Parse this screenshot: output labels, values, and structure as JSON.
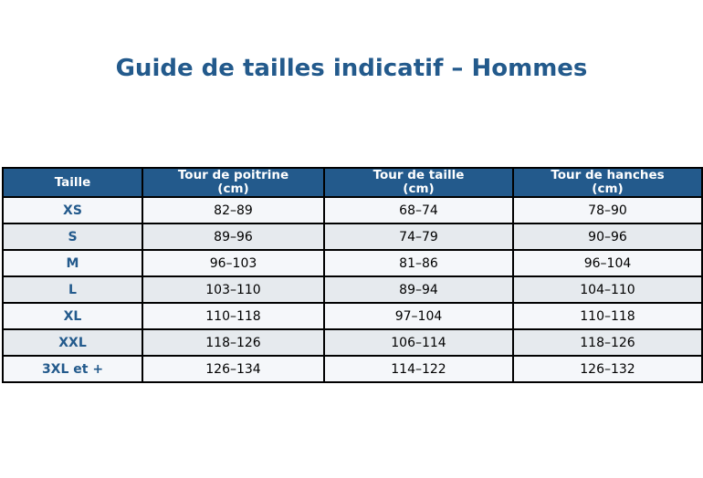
{
  "title": "Guide de tailles indicatif – Hommes",
  "colors": {
    "header_bg": "#235a8c",
    "header_text": "#ffffff",
    "size_label": "#235a8c",
    "row_light": "#f5f7fa",
    "row_alt": "#e6eaee",
    "border": "#000000"
  },
  "chart_data": {
    "type": "table",
    "title": "Guide de tailles indicatif – Hommes",
    "columns": [
      "Taille",
      "Tour de poitrine (cm)",
      "Tour de taille (cm)",
      "Tour de hanches (cm)"
    ],
    "header_lines": [
      [
        "Taille"
      ],
      [
        "Tour de poitrine",
        "(cm)"
      ],
      [
        "Tour de taille",
        "(cm)"
      ],
      [
        "Tour de hanches",
        "(cm)"
      ]
    ],
    "rows": [
      [
        "XS",
        "82–89",
        "68–74",
        "78–90"
      ],
      [
        "S",
        "89–96",
        "74–79",
        "90–96"
      ],
      [
        "M",
        "96–103",
        "81–86",
        "96–104"
      ],
      [
        "L",
        "103–110",
        "89–94",
        "104–110"
      ],
      [
        "XL",
        "110–118",
        "97–104",
        "110–118"
      ],
      [
        "XXL",
        "118–126",
        "106–114",
        "118–126"
      ],
      [
        "3XL et +",
        "126–134",
        "114–122",
        "126–132"
      ]
    ]
  }
}
